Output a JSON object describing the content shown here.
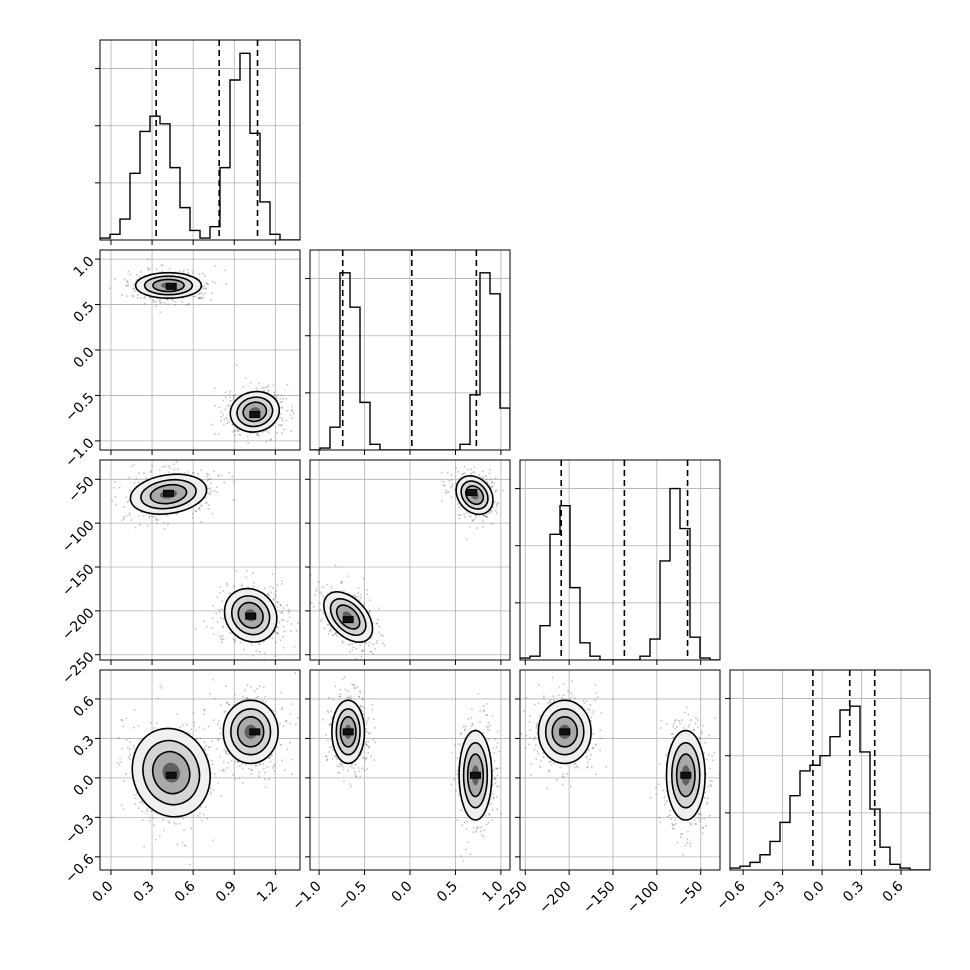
{
  "chart_data": {
    "type": "corner",
    "grid": true,
    "params": [
      {
        "range": [
          -0.08,
          1.38
        ],
        "ticks": [
          0.0,
          0.3,
          0.6,
          0.9,
          1.2
        ],
        "tick_labels": [
          "0.0",
          "0.3",
          "0.6",
          "0.9",
          "1.2"
        ],
        "quantiles": [
          0.33,
          0.79,
          1.07
        ]
      },
      {
        "range": [
          -1.1,
          1.1
        ],
        "ticks": [
          -1.0,
          -0.5,
          0.0,
          0.5,
          1.0
        ],
        "tick_labels": [
          "−1.0",
          "−0.5",
          "0.0",
          "0.5",
          "1.0"
        ],
        "quantiles": [
          -0.74,
          0.02,
          0.73
        ]
      },
      {
        "range": [
          -256,
          -28
        ],
        "ticks": [
          -250,
          -200,
          -150,
          -100,
          -50
        ],
        "tick_labels": [
          "−250",
          "−200",
          "−150",
          "−100",
          "−50"
        ],
        "quantiles": [
          -209,
          -137,
          -65
        ]
      },
      {
        "range": [
          -0.7,
          0.82
        ],
        "ticks": [
          -0.6,
          -0.3,
          0.0,
          0.3,
          0.6
        ],
        "tick_labels": [
          "−0.6",
          "−0.3",
          "0.0",
          "0.3",
          "0.6"
        ],
        "quantiles": [
          -0.07,
          0.21,
          0.4
        ]
      }
    ],
    "histograms": [
      {
        "param": 0,
        "bin_start": -0.08,
        "bin_width": 0.073,
        "counts": [
          0.01,
          0.03,
          0.11,
          0.35,
          0.57,
          0.65,
          0.61,
          0.38,
          0.17,
          0.05,
          0.01,
          0.07,
          0.38,
          0.84,
          0.98,
          0.56,
          0.2,
          0.03,
          0.0,
          0.0
        ]
      },
      {
        "param": 1,
        "bin_start": -1.1,
        "bin_width": 0.11,
        "counts": [
          0.0,
          0.01,
          0.12,
          0.93,
          0.75,
          0.25,
          0.03,
          0.0,
          0.0,
          0.0,
          0.0,
          0.0,
          0.0,
          0.0,
          0.0,
          0.03,
          0.29,
          0.93,
          0.82,
          0.22,
          0.01
        ]
      },
      {
        "param": 2,
        "bin_start": -256,
        "bin_width": 11.4,
        "counts": [
          0.01,
          0.02,
          0.18,
          0.66,
          0.81,
          0.38,
          0.09,
          0.02,
          0.0,
          0.0,
          0.0,
          0.0,
          0.02,
          0.11,
          0.52,
          0.9,
          0.69,
          0.12,
          0.01,
          0.0
        ]
      },
      {
        "param": 3,
        "bin_start": -0.7,
        "bin_width": 0.076,
        "counts": [
          0.01,
          0.02,
          0.04,
          0.08,
          0.15,
          0.25,
          0.39,
          0.52,
          0.55,
          0.6,
          0.7,
          0.84,
          0.86,
          0.62,
          0.32,
          0.12,
          0.03,
          0.01,
          0.0,
          0.0
        ]
      }
    ],
    "contour_panels": [
      {
        "x_param": 0,
        "y_param": 1,
        "blobs": [
          {
            "mx": 0.42,
            "my": 0.71,
            "sx": 0.12,
            "sy": 0.07,
            "rot": 0,
            "peak": [
              0.44,
              0.7
            ]
          },
          {
            "mx": 1.05,
            "my": -0.68,
            "sx": 0.09,
            "sy": 0.11,
            "rot": -0.2,
            "peak": [
              1.05,
              -0.71
            ]
          }
        ]
      },
      {
        "x_param": 0,
        "y_param": 2,
        "blobs": [
          {
            "mx": 0.42,
            "my": -67,
            "sx": 0.14,
            "sy": 11,
            "rot": -0.15,
            "peak": [
              0.42,
              -66
            ]
          },
          {
            "mx": 1.02,
            "my": -205,
            "sx": 0.09,
            "sy": 16,
            "rot": -0.7,
            "peak": [
              1.02,
              -206
            ]
          }
        ]
      },
      {
        "x_param": 1,
        "y_param": 2,
        "blobs": [
          {
            "mx": 0.71,
            "my": -68,
            "sx": 0.09,
            "sy": 12,
            "rot": -0.7,
            "peak": [
              0.68,
              -65
            ]
          },
          {
            "mx": -0.68,
            "my": -207,
            "sx": 0.1,
            "sy": 17,
            "rot": -0.75,
            "peak": [
              -0.68,
              -210
            ]
          }
        ]
      },
      {
        "x_param": 0,
        "y_param": 3,
        "blobs": [
          {
            "mx": 0.44,
            "my": 0.04,
            "sx": 0.14,
            "sy": 0.17,
            "rot": -0.3,
            "peak": [
              0.44,
              0.02
            ]
          },
          {
            "mx": 1.02,
            "my": 0.35,
            "sx": 0.1,
            "sy": 0.12,
            "rot": 0,
            "peak": [
              1.05,
              0.35
            ]
          }
        ]
      },
      {
        "x_param": 1,
        "y_param": 3,
        "blobs": [
          {
            "mx": -0.68,
            "my": 0.35,
            "sx": 0.09,
            "sy": 0.12,
            "rot": 0,
            "peak": [
              -0.68,
              0.35
            ]
          },
          {
            "mx": 0.72,
            "my": 0.02,
            "sx": 0.09,
            "sy": 0.17,
            "rot": 0,
            "peak": [
              0.72,
              0.02
            ]
          }
        ]
      },
      {
        "x_param": 2,
        "y_param": 3,
        "blobs": [
          {
            "mx": -205,
            "my": 0.35,
            "sx": 15,
            "sy": 0.12,
            "rot": 0,
            "peak": [
              -205,
              0.35
            ]
          },
          {
            "mx": -67,
            "my": 0.02,
            "sx": 11,
            "sy": 0.17,
            "rot": 0,
            "peak": [
              -67,
              0.02
            ]
          }
        ]
      }
    ],
    "contour_levels": [
      0.3,
      0.65,
      0.9
    ],
    "colors": {
      "line": "#000000",
      "grid": "#b0b0b0",
      "points": "#555555",
      "fills": [
        "#f0f0f0",
        "#d4d4d4",
        "#a9a9a9",
        "#606060"
      ]
    }
  }
}
